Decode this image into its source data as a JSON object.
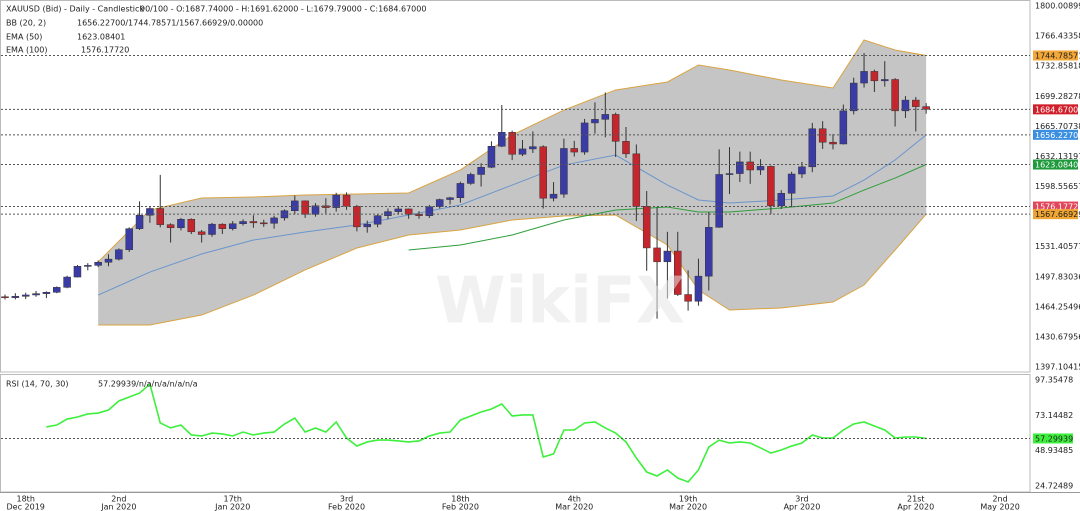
{
  "chart_data": [
    {
      "type": "candlestick",
      "title": "XAUUSD (Bid) - Daily - Candlestick",
      "ohlc_readout": "90/100 - O:1687.74000 - H:1691.62000 - L:1679.79000 - C:1684.67000",
      "watermark": "WikiFX",
      "x": [
        "2019-12-16",
        "2019-12-17",
        "2019-12-18",
        "2019-12-19",
        "2019-12-20",
        "2019-12-23",
        "2019-12-24",
        "2019-12-26",
        "2019-12-27",
        "2019-12-30",
        "2019-12-31",
        "2020-01-02",
        "2020-01-03",
        "2020-01-06",
        "2020-01-07",
        "2020-01-08",
        "2020-01-09",
        "2020-01-10",
        "2020-01-13",
        "2020-01-14",
        "2020-01-15",
        "2020-01-16",
        "2020-01-17",
        "2020-01-20",
        "2020-01-21",
        "2020-01-22",
        "2020-01-23",
        "2020-01-24",
        "2020-01-27",
        "2020-01-28",
        "2020-01-29",
        "2020-01-30",
        "2020-01-31",
        "2020-02-03",
        "2020-02-04",
        "2020-02-05",
        "2020-02-06",
        "2020-02-07",
        "2020-02-10",
        "2020-02-11",
        "2020-02-12",
        "2020-02-13",
        "2020-02-14",
        "2020-02-17",
        "2020-02-18",
        "2020-02-19",
        "2020-02-20",
        "2020-02-21",
        "2020-02-24",
        "2020-02-25",
        "2020-02-26",
        "2020-02-27",
        "2020-02-28",
        "2020-03-02",
        "2020-03-03",
        "2020-03-04",
        "2020-03-05",
        "2020-03-06",
        "2020-03-09",
        "2020-03-10",
        "2020-03-11",
        "2020-03-12",
        "2020-03-13",
        "2020-03-16",
        "2020-03-17",
        "2020-03-18",
        "2020-03-19",
        "2020-03-20",
        "2020-03-23",
        "2020-03-24",
        "2020-03-25",
        "2020-03-26",
        "2020-03-27",
        "2020-03-30",
        "2020-03-31",
        "2020-04-01",
        "2020-04-02",
        "2020-04-03",
        "2020-04-06",
        "2020-04-07",
        "2020-04-08",
        "2020-04-09",
        "2020-04-13",
        "2020-04-14",
        "2020-04-15",
        "2020-04-16",
        "2020-04-17",
        "2020-04-20",
        "2020-04-21",
        "2020-04-22"
      ],
      "open": [
        1475.5,
        1474.5,
        1476.0,
        1477.5,
        1479.0,
        1480.5,
        1486.0,
        1497.5,
        1509.5,
        1510.5,
        1514.0,
        1517.5,
        1528.0,
        1551.5,
        1566.5,
        1574.0,
        1556.0,
        1552.5,
        1562.0,
        1548.0,
        1545.0,
        1556.5,
        1551.5,
        1557.0,
        1559.5,
        1558.0,
        1557.5,
        1563.5,
        1571.5,
        1582.5,
        1567.5,
        1577.0,
        1575.0,
        1589.0,
        1576.5,
        1553.5,
        1556.5,
        1566.0,
        1570.5,
        1573.5,
        1567.5,
        1566.0,
        1576.0,
        1584.0,
        1586.0,
        1602.0,
        1612.0,
        1620.0,
        1643.5,
        1659.0,
        1634.5,
        1640.5,
        1643.0,
        1585.5,
        1590.0,
        1641.0,
        1637.0,
        1669.5,
        1673.5,
        1679.0,
        1649.0,
        1635.0,
        1576.5,
        1530.0,
        1514.5,
        1526.5,
        1478.0,
        1470.5,
        1498.5,
        1553.0,
        1612.0,
        1613.0,
        1626.0,
        1617.0,
        1621.0,
        1577.0,
        1591.0,
        1612.5,
        1620.5,
        1663.0,
        1648.0,
        1646.0,
        1683.0,
        1714.0,
        1727.0,
        1716.5,
        1718.0,
        1683.0,
        1695.0,
        1687.74
      ],
      "high": [
        1478.0,
        1479.5,
        1480.0,
        1482.0,
        1481.5,
        1487.0,
        1499.0,
        1511.0,
        1513.0,
        1516.0,
        1523.0,
        1529.5,
        1553.0,
        1582.0,
        1576.0,
        1611.5,
        1557.5,
        1563.5,
        1563.0,
        1550.0,
        1558.0,
        1557.5,
        1560.0,
        1562.0,
        1566.5,
        1561.5,
        1566.0,
        1573.0,
        1588.5,
        1583.0,
        1580.0,
        1585.5,
        1591.5,
        1592.0,
        1578.0,
        1560.5,
        1567.0,
        1574.0,
        1576.0,
        1574.0,
        1571.0,
        1578.0,
        1585.0,
        1587.0,
        1604.0,
        1614.0,
        1624.5,
        1649.0,
        1689.5,
        1661.0,
        1650.5,
        1660.0,
        1644.5,
        1603.5,
        1652.0,
        1649.5,
        1674.0,
        1692.5,
        1703.5,
        1681.0,
        1665.0,
        1645.5,
        1593.5,
        1575.5,
        1548.0,
        1548.0,
        1505.0,
        1518.0,
        1570.0,
        1640.0,
        1642.5,
        1637.5,
        1637.5,
        1629.0,
        1622.0,
        1594.5,
        1615.0,
        1626.0,
        1669.5,
        1671.5,
        1657.0,
        1690.0,
        1720.0,
        1747.5,
        1729.0,
        1738.5,
        1719.5,
        1699.5,
        1698.5,
        1691.62
      ],
      "low": [
        1472.5,
        1472.5,
        1473.0,
        1475.5,
        1474.0,
        1479.5,
        1485.0,
        1497.0,
        1505.0,
        1508.5,
        1509.5,
        1516.0,
        1525.5,
        1550.0,
        1558.0,
        1553.0,
        1536.0,
        1549.5,
        1545.5,
        1536.0,
        1542.5,
        1545.5,
        1549.5,
        1555.0,
        1552.5,
        1553.5,
        1551.5,
        1560.5,
        1567.5,
        1563.5,
        1565.0,
        1568.5,
        1570.5,
        1572.5,
        1548.5,
        1547.0,
        1553.0,
        1562.0,
        1567.5,
        1562.5,
        1562.5,
        1563.5,
        1574.0,
        1578.5,
        1580.5,
        1600.5,
        1598.5,
        1619.0,
        1642.5,
        1628.0,
        1632.5,
        1636.0,
        1574.0,
        1582.0,
        1586.0,
        1632.0,
        1634.0,
        1657.5,
        1653.5,
        1631.5,
        1630.5,
        1560.0,
        1504.5,
        1451.0,
        1473.5,
        1476.5,
        1460.0,
        1465.5,
        1482.5,
        1552.5,
        1590.0,
        1603.5,
        1601.5,
        1611.5,
        1568.0,
        1573.5,
        1576.0,
        1608.0,
        1614.5,
        1640.5,
        1640.0,
        1645.5,
        1679.0,
        1709.0,
        1704.0,
        1710.0,
        1665.5,
        1675.0,
        1660.0,
        1679.79
      ],
      "close": [
        1474.5,
        1476.0,
        1477.5,
        1479.0,
        1480.5,
        1486.0,
        1497.5,
        1509.5,
        1510.5,
        1514.0,
        1517.5,
        1528.0,
        1551.5,
        1566.5,
        1574.0,
        1556.0,
        1552.5,
        1562.0,
        1548.0,
        1545.0,
        1556.5,
        1551.5,
        1557.0,
        1559.5,
        1558.0,
        1557.5,
        1563.5,
        1571.5,
        1582.5,
        1567.5,
        1577.0,
        1575.0,
        1589.0,
        1576.5,
        1553.5,
        1556.5,
        1566.0,
        1570.5,
        1573.5,
        1567.5,
        1566.0,
        1576.0,
        1584.0,
        1586.0,
        1602.0,
        1612.0,
        1620.0,
        1643.5,
        1659.0,
        1634.5,
        1640.5,
        1643.0,
        1585.5,
        1590.0,
        1641.0,
        1637.0,
        1669.5,
        1673.5,
        1679.0,
        1649.0,
        1635.0,
        1576.5,
        1530.0,
        1514.5,
        1526.5,
        1478.0,
        1470.5,
        1498.5,
        1553.0,
        1612.0,
        1613.0,
        1626.0,
        1617.0,
        1621.0,
        1577.0,
        1591.0,
        1612.5,
        1620.5,
        1663.0,
        1648.0,
        1646.0,
        1683.0,
        1714.0,
        1727.0,
        1716.5,
        1718.0,
        1683.0,
        1695.0,
        1687.7,
        1684.67
      ],
      "up_color": "#3b3ba6",
      "down_color": "#c4262e",
      "ylim": [
        1397.10415,
        1800.00899
      ],
      "yticks": [
        1800.00899,
        1766.43358,
        1732.85818,
        1699.28278,
        1665.70738,
        1632.13197,
        1598.55657,
        1531.40577,
        1497.83036,
        1464.25496,
        1430.67956,
        1397.10415
      ],
      "indicators": [
        {
          "name": "BB (20, 2)",
          "readout": "1656.22700/1744.78571/1567.66929/0.00000",
          "x": [
            "2019-12-30",
            "2020-01-07",
            "2020-01-14",
            "2020-01-21",
            "2020-01-28",
            "2020-02-04",
            "2020-02-11",
            "2020-02-18",
            "2020-02-25",
            "2020-03-03",
            "2020-03-10",
            "2020-03-17",
            "2020-03-20",
            "2020-03-25",
            "2020-04-01",
            "2020-04-08",
            "2020-04-14",
            "2020-04-17",
            "2020-04-22"
          ],
          "upper": [
            1514.3,
            1572.3,
            1585.7,
            1586.8,
            1589.1,
            1590.2,
            1591.3,
            1617.0,
            1656.0,
            1683.9,
            1706.3,
            1715.2,
            1734.2,
            1728.6,
            1717.4,
            1708.5,
            1762.1,
            1750.9,
            1744.78571
          ],
          "middle": [
            1477.4,
            1503.1,
            1523.2,
            1538.8,
            1547.8,
            1555.6,
            1566.7,
            1577.9,
            1600.2,
            1622.5,
            1633.7,
            1600.2,
            1583.5,
            1580.1,
            1583.5,
            1588.0,
            1605.8,
            1628.1,
            1656.227
          ],
          "lower": [
            1444.0,
            1444.0,
            1455.1,
            1477.4,
            1505.4,
            1529.9,
            1544.4,
            1550.0,
            1561.2,
            1565.6,
            1566.7,
            1533.3,
            1483.0,
            1460.7,
            1463.0,
            1469.6,
            1488.6,
            1527.7,
            1567.66929
          ],
          "fill": "#bfbfbf",
          "edge_color": "#d9a441",
          "middle_color": "#6a95cc"
        },
        {
          "name": "EMA (50)",
          "readout": "1623.08401",
          "x": [
            "2020-02-11",
            "2020-02-18",
            "2020-02-25",
            "2020-03-03",
            "2020-03-10",
            "2020-03-17",
            "2020-03-20",
            "2020-03-25",
            "2020-04-01",
            "2020-04-08",
            "2020-04-14",
            "2020-04-17",
            "2020-04-22"
          ],
          "values": [
            1527.7,
            1533.3,
            1544.4,
            1561.2,
            1572.3,
            1575.7,
            1570.1,
            1570.1,
            1574.6,
            1580.1,
            1594.6,
            1608.0,
            1623.08401
          ],
          "color": "#2f9e3a"
        },
        {
          "name": "EMA (100)",
          "readout": "1576.17720"
        }
      ],
      "price_levels": [
        {
          "value": 1744.78571,
          "label": "1744.78571",
          "color": "#f3a838",
          "text_color": "#222"
        },
        {
          "value": 1684.67,
          "label": "1684.67000",
          "color": "#d01f2a",
          "text_color": "#fff"
        },
        {
          "value": 1656.227,
          "label": "1656.22700",
          "color": "#3a8fe0",
          "text_color": "#fff"
        },
        {
          "value": 1623.08401,
          "label": "1623.08401",
          "color": "#1f9a3c",
          "text_color": "#fff"
        },
        {
          "value": 1576.1772,
          "label": "1576.17720",
          "color": "#e2465a",
          "text_color": "#fff"
        },
        {
          "value": 1567.66929,
          "label": "1567.66929",
          "color": "#f0a432",
          "text_color": "#222"
        }
      ]
    },
    {
      "type": "line",
      "title": "RSI (14, 70, 30)",
      "readout": "57.29939/n/a/n/a/n/a/n/a",
      "values": [
        null,
        null,
        null,
        null,
        65.2,
        66.5,
        70.6,
        72.0,
        74.1,
        74.7,
        76.8,
        83.0,
        85.7,
        88.4,
        94.6,
        67.9,
        64.5,
        66.5,
        59.7,
        59.0,
        61.0,
        60.4,
        59.0,
        61.7,
        59.7,
        61.0,
        61.7,
        67.2,
        71.3,
        61.7,
        64.5,
        61.7,
        68.6,
        57.6,
        52.1,
        54.9,
        56.2,
        56.2,
        55.6,
        54.9,
        55.6,
        59.0,
        61.0,
        61.7,
        69.9,
        72.7,
        75.4,
        77.5,
        80.9,
        72.7,
        73.4,
        73.4,
        44.6,
        46.7,
        63.1,
        63.1,
        67.9,
        68.6,
        64.5,
        61.0,
        54.9,
        43.9,
        34.3,
        31.6,
        35.7,
        30.2,
        27.5,
        35.7,
        51.4,
        56.2,
        54.2,
        54.9,
        54.2,
        50.8,
        47.3,
        49.4,
        52.1,
        54.2,
        59.7,
        57.6,
        57.6,
        63.1,
        67.2,
        68.6,
        65.8,
        63.1,
        57.6,
        58.3,
        58.3,
        57.29939
      ],
      "color": "#3cf03c",
      "current": 57.29939,
      "current_color": "#3cf03c",
      "ylim": [
        24.72489,
        97.35478
      ],
      "yticks": [
        97.35478,
        73.14482,
        48.93485,
        24.72489
      ],
      "grid": true,
      "xticks": [
        {
          "value": "2019-12-18",
          "label": [
            "18th",
            "Dec 2019"
          ]
        },
        {
          "value": "2020-01-02",
          "label": [
            "2nd",
            "Jan 2020"
          ]
        },
        {
          "value": "2020-01-17",
          "label": [
            "17th",
            "Jan 2020"
          ]
        },
        {
          "value": "2020-02-03",
          "label": [
            "3rd",
            "Feb 2020"
          ]
        },
        {
          "value": "2020-02-18",
          "label": [
            "18th",
            "Feb 2020"
          ]
        },
        {
          "value": "2020-03-04",
          "label": [
            "4th",
            "Mar 2020"
          ]
        },
        {
          "value": "2020-03-19",
          "label": [
            "19th",
            "Mar 2020"
          ]
        },
        {
          "value": "2020-04-03",
          "label": [
            "3rd",
            "Apr 2020"
          ]
        },
        {
          "value": "2020-04-21",
          "label": [
            "21st",
            "Apr 2020"
          ]
        },
        {
          "value": "2020-05-02",
          "label": [
            "2nd",
            "May 2020"
          ]
        }
      ]
    }
  ]
}
